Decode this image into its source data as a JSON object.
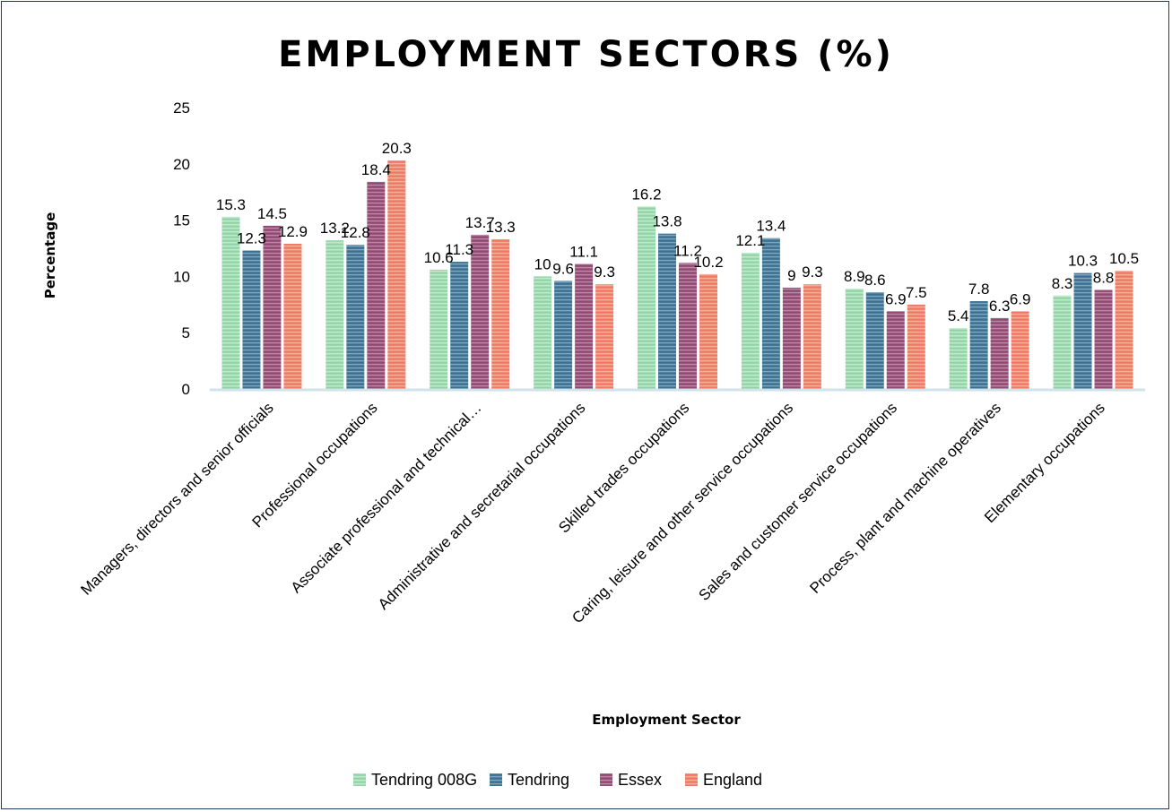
{
  "chart_data": {
    "type": "bar",
    "title": "EMPLOYMENT SECTORS (%)",
    "xlabel": "Employment Sector",
    "ylabel": "Percentage",
    "ylim": [
      0,
      25
    ],
    "yticks": [
      0,
      5,
      10,
      15,
      20,
      25
    ],
    "grid": false,
    "legend_position": "bottom",
    "categories": [
      "Managers, directors and senior officials",
      "Professional occupations",
      "Associate professional and technical…",
      "Administrative and secretarial occupations",
      "Skilled trades occupations",
      "Caring, leisure and other service occupations",
      "Sales and customer service occupations",
      "Process, plant and machine operatives",
      "Elementary occupations"
    ],
    "series": [
      {
        "name": "Tendring 008G",
        "color": "#a8e0b8",
        "stripe": "#8fd0a3",
        "values": [
          15.3,
          13.2,
          10.6,
          10,
          16.2,
          12.1,
          8.9,
          5.4,
          8.3
        ]
      },
      {
        "name": "Tendring",
        "color": "#4f84a3",
        "stripe": "#3c6f8e",
        "values": [
          12.3,
          12.8,
          11.3,
          9.6,
          13.8,
          13.4,
          8.6,
          7.8,
          10.3
        ]
      },
      {
        "name": "Essex",
        "color": "#a35c84",
        "stripe": "#8d4a71",
        "values": [
          14.5,
          18.4,
          13.7,
          11.1,
          11.2,
          9,
          6.9,
          6.3,
          8.8
        ]
      },
      {
        "name": "England",
        "color": "#f48c78",
        "stripe": "#ee7762",
        "values": [
          12.9,
          20.3,
          13.3,
          9.3,
          10.2,
          9.3,
          7.5,
          6.9,
          10.5
        ]
      }
    ],
    "axis_color": "#cfe3ea"
  }
}
